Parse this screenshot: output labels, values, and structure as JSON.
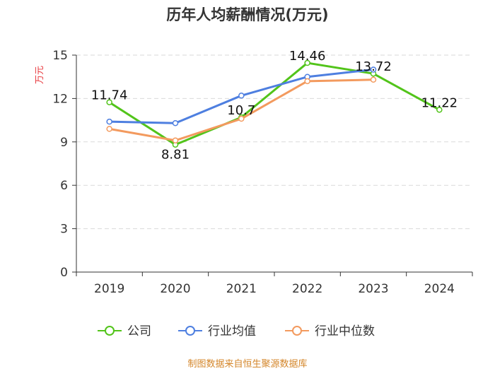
{
  "chart_data": {
    "type": "line",
    "title": "历年人均薪酬情况(万元)",
    "ylabel": "万元",
    "xlabel": "",
    "ylim": [
      0,
      15
    ],
    "yticks": [
      0,
      3,
      6,
      9,
      12,
      15
    ],
    "categories": [
      "2019",
      "2020",
      "2021",
      "2022",
      "2023",
      "2024"
    ],
    "grid": true,
    "legend_position": "bottom",
    "series": [
      {
        "name": "公司",
        "color": "#52c41a",
        "values": [
          11.74,
          8.81,
          10.7,
          14.46,
          13.72,
          11.22
        ],
        "labels": [
          "11.74",
          "8.81",
          "10.7",
          "14.46",
          "13.72",
          "11.22"
        ]
      },
      {
        "name": "行业均值",
        "color": "#4e7fe0",
        "values": [
          10.4,
          10.3,
          12.2,
          13.5,
          14.0,
          null
        ]
      },
      {
        "name": "行业中位数",
        "color": "#f39a5e",
        "values": [
          9.9,
          9.1,
          10.6,
          13.2,
          13.3,
          null
        ]
      }
    ],
    "source": "制图数据来自恒生聚源数据库"
  }
}
